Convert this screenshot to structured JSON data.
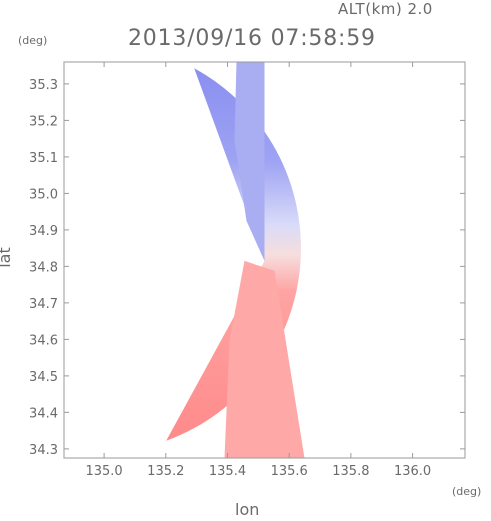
{
  "header": {
    "altitude_label": "ALT(km) 2.0",
    "timestamp": "2013/09/16 07:58:59"
  },
  "colors": {
    "toward": "#7f86f3",
    "away": "#ff8080",
    "frame": "#9a9a9a"
  },
  "chart_data": {
    "type": "heatmap",
    "title": "2013/09/16 07:58:59",
    "subtitle": "ALT(km) 2.0",
    "xlabel": "lon",
    "ylabel": "lat",
    "xunit": "(deg)",
    "yunit": "(deg)",
    "xlim": [
      134.87,
      136.17
    ],
    "ylim": [
      34.275,
      35.36
    ],
    "xticks": [
      135.0,
      135.2,
      135.4,
      135.6,
      135.8,
      136.0
    ],
    "xtick_labels": [
      "135.0",
      "135.2",
      "135.4",
      "135.6",
      "135.8",
      "136.0"
    ],
    "yticks": [
      34.3,
      34.4,
      34.5,
      34.6,
      34.7,
      34.8,
      34.9,
      35.0,
      35.1,
      35.2,
      35.3
    ],
    "ytick_labels": [
      "34.3",
      "34.4",
      "34.5",
      "34.6",
      "34.7",
      "34.8",
      "34.9",
      "35.0",
      "35.1",
      "35.2",
      "35.3"
    ],
    "radar_center": {
      "lon": 135.52,
      "lat": 34.815
    },
    "grid": false,
    "legend": "none"
  }
}
